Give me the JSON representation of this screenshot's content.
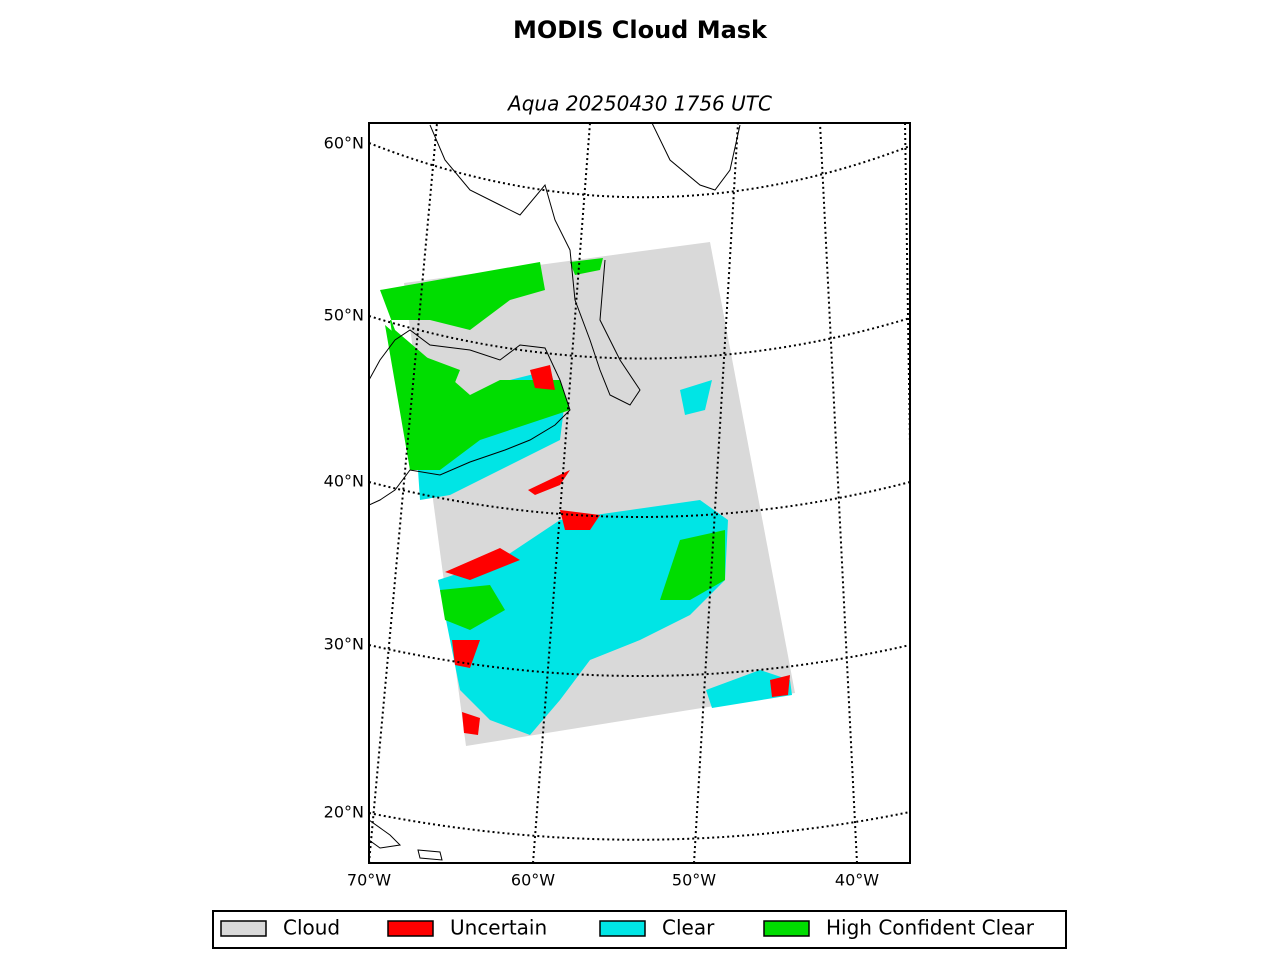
{
  "title": "MODIS Cloud Mask",
  "subtitle": "Aqua 20250430 1756 UTC",
  "lat_labels": [
    "60°N",
    "50°N",
    "40°N",
    "30°N",
    "20°N"
  ],
  "lon_labels": [
    "70°W",
    "60°W",
    "50°W",
    "40°W"
  ],
  "legend": [
    {
      "label": "Cloud",
      "color": "#d9d9d9"
    },
    {
      "label": "Uncertain",
      "color": "#ff0000"
    },
    {
      "label": "Clear",
      "color": "#00e5e5"
    },
    {
      "label": "High Confident Clear",
      "color": "#00dd00"
    }
  ]
}
